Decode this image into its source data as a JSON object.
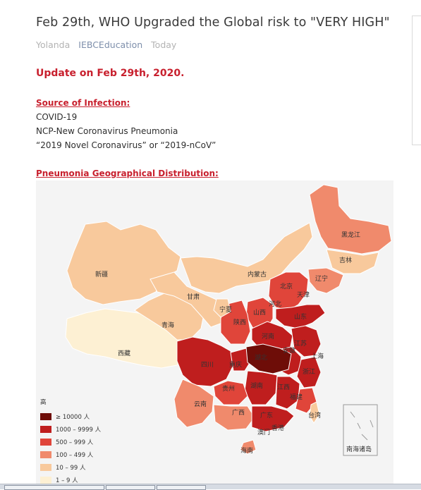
{
  "article": {
    "title": "Feb 29th, WHO Upgraded the Global risk to \"VERY HIGH\"",
    "author": "Yolanda",
    "channel": "IEBCEducation",
    "date": "Today",
    "update": "Update on Feb 29th, 2020.",
    "source_heading": "Source of Infection:",
    "lines": [
      "COVID-19",
      "NCP-New Coronavirus Pneumonia",
      "“2019 Novel Coronavirus”  or  “2019-nCoV”"
    ],
    "map_heading": "Pneumonia Geographical Distribution:"
  },
  "map": {
    "legend_title": "高",
    "legend": [
      {
        "label": "≥ 10000 人",
        "color": "#6e0d08"
      },
      {
        "label": "1000 – 9999 人",
        "color": "#bf1e1e"
      },
      {
        "label": "500 – 999 人",
        "color": "#e0453a"
      },
      {
        "label": "100 – 499 人",
        "color": "#f08a6c"
      },
      {
        "label": "10 – 99 人",
        "color": "#f8c99c"
      },
      {
        "label": "1 – 9 人",
        "color": "#fdf0d3"
      }
    ],
    "provinces": {
      "heilongjiang": "黑龙江",
      "jilin": "吉林",
      "liaoning": "辽宁",
      "neimenggu": "内蒙古",
      "xinjiang": "新疆",
      "xizang": "西藏",
      "qinghai": "青海",
      "gansu": "甘肃",
      "ningxia": "宁夏",
      "shaanxi": "陕西",
      "shanxi": "山西",
      "hebei": "河北",
      "beijing": "北京",
      "tianjin": "天津",
      "shandong": "山东",
      "henan": "河南",
      "jiangsu": "江苏",
      "shanghai": "上海",
      "anhui": "安徽",
      "hubei": "湖北",
      "sichuan": "四川",
      "chongqing": "重庆",
      "zhejiang": "浙江",
      "guizhou": "贵州",
      "hunan": "湖南",
      "jiangxi": "江西",
      "fujian": "福建",
      "yunnan": "云南",
      "guangxi": "广西",
      "guangdong": "广东",
      "taiwan": "台湾",
      "hongkong": "香港",
      "macau": "澳门",
      "hainan": "海南",
      "nanhai": "南海诸岛"
    }
  }
}
